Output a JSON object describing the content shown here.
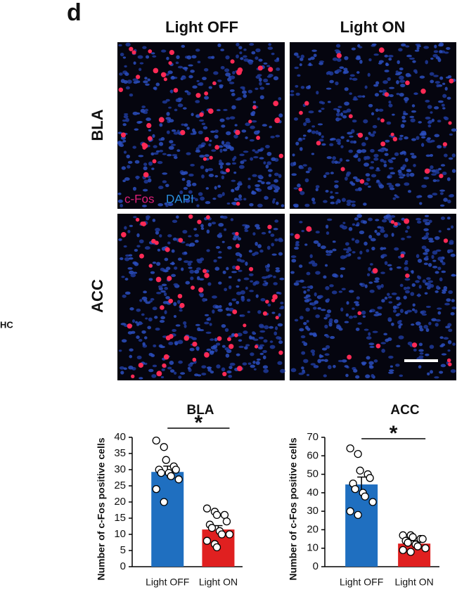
{
  "figure": {
    "panel": "d",
    "columns": [
      "Light OFF",
      "Light ON"
    ],
    "rows": [
      "BLA",
      "ACC"
    ],
    "stain_labels": [
      "c-Fos",
      "DAPI"
    ],
    "cropped_label": "HC"
  },
  "chart_data": [
    {
      "type": "bar",
      "title": "BLA",
      "y_label": "Number of c-Fos positive cells",
      "categories": [
        "Light OFF",
        "Light ON"
      ],
      "values": [
        29.3,
        11.5
      ],
      "errors": [
        1.8,
        1.2
      ],
      "colors": [
        "#1f6fc0",
        "#e02020"
      ],
      "points": [
        [
          39,
          37,
          33,
          31,
          30,
          30,
          29,
          29,
          28,
          27,
          24,
          20
        ],
        [
          18,
          17,
          16,
          16,
          14,
          13,
          12,
          11,
          10,
          10,
          8,
          7,
          6
        ]
      ],
      "annotation": "*",
      "ylim": [
        0,
        40
      ],
      "yticks": [
        0,
        5,
        10,
        15,
        20,
        25,
        30,
        35,
        40
      ]
    },
    {
      "type": "bar",
      "title": "ACC",
      "y_label": "Number of c-Fos positive cells",
      "categories": [
        "Light OFF",
        "Light ON"
      ],
      "values": [
        44.5,
        12.5
      ],
      "errors": [
        4,
        1.5
      ],
      "colors": [
        "#1f6fc0",
        "#e02020"
      ],
      "points": [
        [
          64,
          61,
          52,
          50,
          48,
          45,
          42,
          40,
          38,
          35,
          30,
          28
        ],
        [
          17,
          17,
          16,
          15,
          15,
          14,
          13,
          12,
          11,
          10,
          9,
          8
        ]
      ],
      "annotation": "*",
      "ylim": [
        0,
        70
      ],
      "yticks": [
        0,
        10,
        20,
        30,
        40,
        50,
        60,
        70
      ]
    }
  ]
}
